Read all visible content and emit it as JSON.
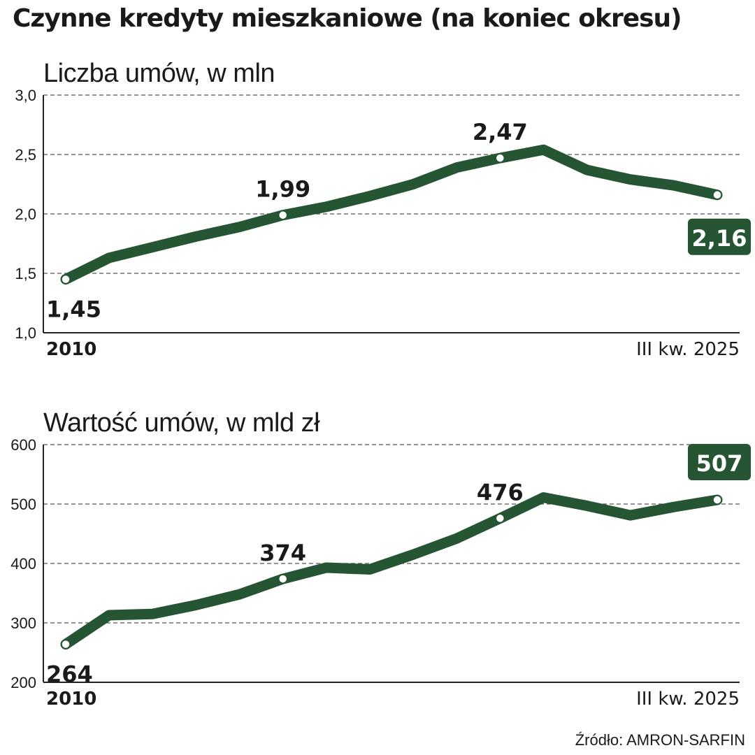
{
  "title": "Czynne kredyty mieszkaniowe (na koniec okresu)",
  "source": "Źródło: AMRON-SARFIN",
  "colors": {
    "line": "#255533",
    "grid": "#555555",
    "axis": "#222222",
    "text": "#1a1a1a",
    "badge": "#255533",
    "badge_text": "#ffffff"
  },
  "chart_data": [
    {
      "type": "line",
      "subtitle": "Liczba umów, w mln",
      "xlabel": "",
      "ylabel": "",
      "x_start_label": "2010",
      "x_end_label": "III kw. 2025",
      "ylim": [
        1.0,
        3.0
      ],
      "yticks": [
        1.0,
        1.5,
        2.0,
        2.5,
        3.0
      ],
      "ytick_labels": [
        "1,0",
        "1,5",
        "2,0",
        "2,5",
        "3,0"
      ],
      "grid": true,
      "x": [
        "2010",
        "2011",
        "2012",
        "2013",
        "2014",
        "2015",
        "2016",
        "2017",
        "2018",
        "2019",
        "2020",
        "2021",
        "2022",
        "2023",
        "2024",
        "III kw. 2025"
      ],
      "values": [
        1.45,
        1.63,
        1.72,
        1.81,
        1.89,
        1.99,
        2.06,
        2.15,
        2.25,
        2.39,
        2.47,
        2.54,
        2.37,
        2.29,
        2.24,
        2.16
      ],
      "annotations": [
        {
          "index": 0,
          "label": "1,45",
          "style": "plain",
          "position": "below"
        },
        {
          "index": 5,
          "label": "1,99",
          "style": "plain",
          "position": "above"
        },
        {
          "index": 10,
          "label": "2,47",
          "style": "plain",
          "position": "above"
        },
        {
          "index": 15,
          "label": "2,16",
          "style": "badge",
          "position": "below"
        }
      ]
    },
    {
      "type": "line",
      "subtitle": "Wartość umów, w mld zł",
      "xlabel": "",
      "ylabel": "",
      "x_start_label": "2010",
      "x_end_label": "III kw. 2025",
      "ylim": [
        200,
        600
      ],
      "yticks": [
        200,
        300,
        400,
        500,
        600
      ],
      "ytick_labels": [
        "200",
        "300",
        "400",
        "500",
        "600"
      ],
      "grid": true,
      "x": [
        "2010",
        "2011",
        "2012",
        "2013",
        "2014",
        "2015",
        "2016",
        "2017",
        "2018",
        "2019",
        "2020",
        "2021",
        "2022",
        "2023",
        "2024",
        "III kw. 2025"
      ],
      "values": [
        264,
        313,
        315,
        330,
        348,
        374,
        393,
        390,
        415,
        442,
        476,
        511,
        497,
        481,
        495,
        507
      ],
      "annotations": [
        {
          "index": 0,
          "label": "264",
          "style": "plain",
          "position": "below"
        },
        {
          "index": 5,
          "label": "374",
          "style": "plain",
          "position": "above"
        },
        {
          "index": 10,
          "label": "476",
          "style": "plain",
          "position": "above"
        },
        {
          "index": 15,
          "label": "507",
          "style": "badge",
          "position": "above"
        }
      ]
    }
  ]
}
